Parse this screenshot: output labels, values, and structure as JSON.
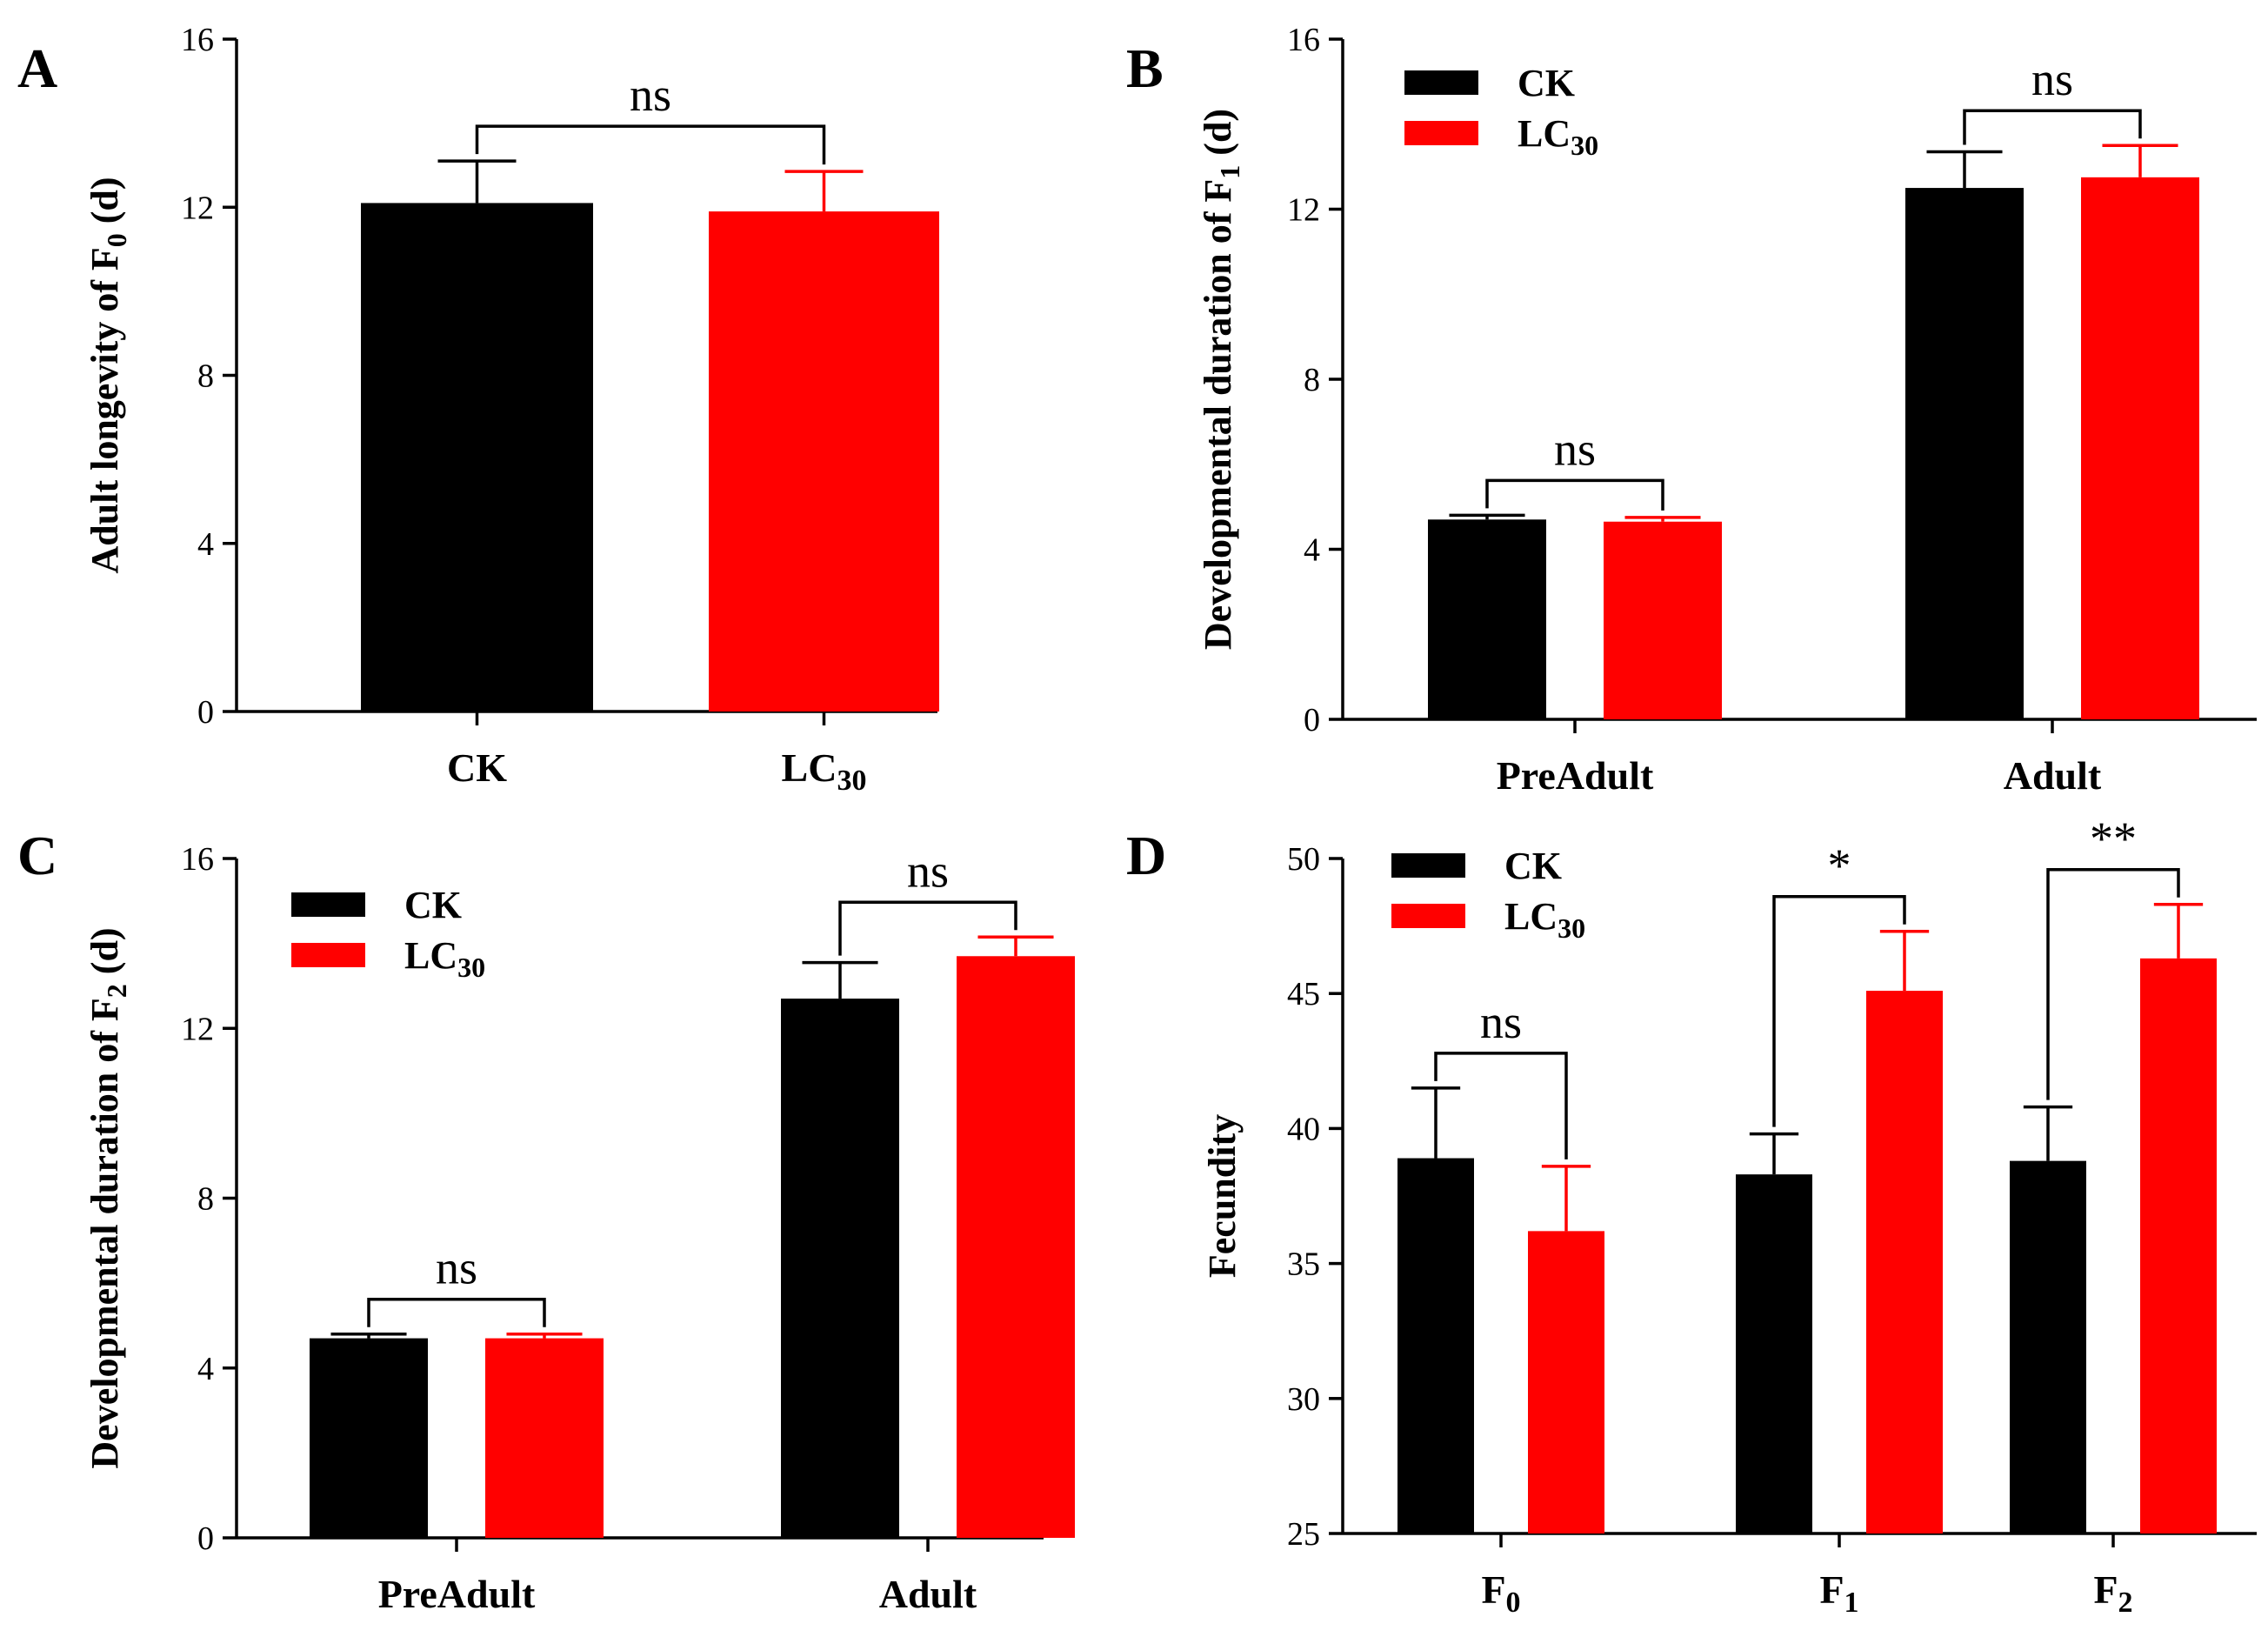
{
  "series_colors": {
    "CK": "#000000",
    "LC30": "#ff0000"
  },
  "chart_data": [
    {
      "panel": "A",
      "type": "bar",
      "ylabel": "Adult longevity of F",
      "ylabel_sub": "0",
      "ylabel_suffix": " (d)",
      "ylim": [
        0,
        16
      ],
      "yticks": [
        "0",
        "4",
        "8",
        "12",
        "16"
      ],
      "legend": false,
      "categories": [
        {
          "text": "CK",
          "sub": ""
        },
        {
          "text": "LC",
          "sub": "30"
        }
      ],
      "values": [
        12.1,
        11.9
      ],
      "errors": [
        1.0,
        0.95
      ],
      "significance": [
        {
          "text": "ns"
        }
      ]
    },
    {
      "panel": "B",
      "type": "bar",
      "ylabel": "Developmental duration of F",
      "ylabel_sub": "1",
      "ylabel_suffix": " (d)",
      "ylim": [
        0,
        16
      ],
      "yticks": [
        "0",
        "4",
        "8",
        "12",
        "16"
      ],
      "legend": true,
      "categories": [
        {
          "text": "PreAdult",
          "sub": ""
        },
        {
          "text": "Adult",
          "sub": ""
        }
      ],
      "series": [
        {
          "name": "CK",
          "name_sub": "",
          "values": [
            4.7,
            12.5
          ],
          "errors": [
            0.1,
            0.85
          ]
        },
        {
          "name": "LC",
          "name_sub": "30",
          "values": [
            4.65,
            12.75
          ],
          "errors": [
            0.1,
            0.75
          ]
        }
      ],
      "significance": [
        {
          "text": "ns"
        },
        {
          "text": "ns"
        }
      ]
    },
    {
      "panel": "C",
      "type": "bar",
      "ylabel": "Developmental duration of F",
      "ylabel_sub": "2",
      "ylabel_suffix": " (d)",
      "ylim": [
        0,
        16
      ],
      "yticks": [
        "0",
        "4",
        "8",
        "12",
        "16"
      ],
      "legend": true,
      "categories": [
        {
          "text": "PreAdult",
          "sub": ""
        },
        {
          "text": "Adult",
          "sub": ""
        }
      ],
      "series": [
        {
          "name": "CK",
          "name_sub": "",
          "values": [
            4.7,
            12.7
          ],
          "errors": [
            0.1,
            0.85
          ]
        },
        {
          "name": "LC",
          "name_sub": "30",
          "values": [
            4.7,
            13.7
          ],
          "errors": [
            0.1,
            0.45
          ]
        }
      ],
      "significance": [
        {
          "text": "ns"
        },
        {
          "text": "ns"
        }
      ]
    },
    {
      "panel": "D",
      "type": "bar",
      "ylabel": "Fecundity",
      "ylabel_sub": "",
      "ylabel_suffix": "",
      "ylim": [
        25,
        50
      ],
      "yticks": [
        "25",
        "30",
        "35",
        "40",
        "45",
        "50"
      ],
      "legend": true,
      "categories": [
        {
          "text": "F",
          "sub": "0"
        },
        {
          "text": "F",
          "sub": "1"
        },
        {
          "text": "F",
          "sub": "2"
        }
      ],
      "series": [
        {
          "name": "CK",
          "name_sub": "",
          "values": [
            38.9,
            38.3,
            38.8
          ],
          "errors": [
            2.6,
            1.5,
            2.0
          ]
        },
        {
          "name": "LC",
          "name_sub": "30",
          "values": [
            36.2,
            45.1,
            46.3
          ],
          "errors": [
            2.4,
            2.2,
            2.0
          ]
        }
      ],
      "significance": [
        {
          "text": "ns"
        },
        {
          "text": "*"
        },
        {
          "text": "**"
        }
      ]
    }
  ]
}
